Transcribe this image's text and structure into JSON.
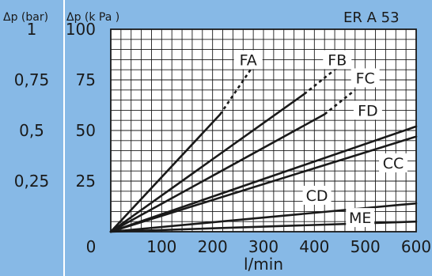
{
  "chart_data": {
    "type": "line",
    "title": "ER A 53",
    "ylabel_bar": "Δp (bar)",
    "ylabel_kpa": "Δp (k Pa )",
    "xlabel": "l/min",
    "xlim": [
      0,
      600
    ],
    "ylim": [
      0,
      100
    ],
    "grid": true,
    "x_ticks": [
      {
        "value": 0,
        "label": "0"
      },
      {
        "value": 100,
        "label": "100"
      },
      {
        "value": 200,
        "label": "200"
      },
      {
        "value": 300,
        "label": "300"
      },
      {
        "value": 400,
        "label": "400"
      },
      {
        "value": 500,
        "label": "500"
      },
      {
        "value": 600,
        "label": "600"
      }
    ],
    "y_ticks_kpa": [
      {
        "value": 100,
        "label": "100"
      },
      {
        "value": 75,
        "label": "75"
      },
      {
        "value": 50,
        "label": "50"
      },
      {
        "value": 25,
        "label": "25"
      }
    ],
    "y_ticks_bar": [
      {
        "value": 100,
        "label": "1"
      },
      {
        "value": 75,
        "label": "0,75"
      },
      {
        "value": 50,
        "label": "0,5"
      },
      {
        "value": 25,
        "label": "0,25"
      }
    ],
    "series": [
      {
        "name": "FA",
        "solid": [
          [
            0,
            0
          ],
          [
            215,
            58
          ]
        ],
        "dashed": [
          [
            215,
            58
          ],
          [
            280,
            82
          ]
        ],
        "label_at": [
          270,
          85
        ]
      },
      {
        "name": "FB",
        "solid": [
          [
            0,
            0
          ],
          [
            380,
            68
          ]
        ],
        "dashed": [
          [
            380,
            68
          ],
          [
            465,
            85
          ]
        ],
        "label_at": [
          445,
          85
        ]
      },
      {
        "name": "FC",
        "solid": [
          [
            0,
            0
          ],
          [
            420,
            58
          ]
        ],
        "dashed": [
          [
            420,
            58
          ],
          [
            480,
            70
          ]
        ],
        "label_at": [
          500,
          76
        ]
      },
      {
        "name": "FD",
        "solid": [
          [
            0,
            0
          ],
          [
            600,
            52
          ]
        ],
        "dashed": [],
        "label_at": [
          505,
          60
        ]
      },
      {
        "name": "CC",
        "solid": [
          [
            0,
            0
          ],
          [
            600,
            47
          ]
        ],
        "dashed": [],
        "label_at": [
          555,
          34
        ]
      },
      {
        "name": "CD",
        "solid": [
          [
            0,
            0
          ],
          [
            600,
            14
          ]
        ],
        "dashed": [],
        "label_at": [
          405,
          18
        ]
      },
      {
        "name": "ME",
        "solid": [
          [
            0,
            0
          ],
          [
            600,
            5
          ]
        ],
        "dashed": [],
        "label_at": [
          490,
          7
        ]
      }
    ]
  },
  "colors": {
    "panel": "#87b9e6",
    "line": "#1a1a1a"
  }
}
